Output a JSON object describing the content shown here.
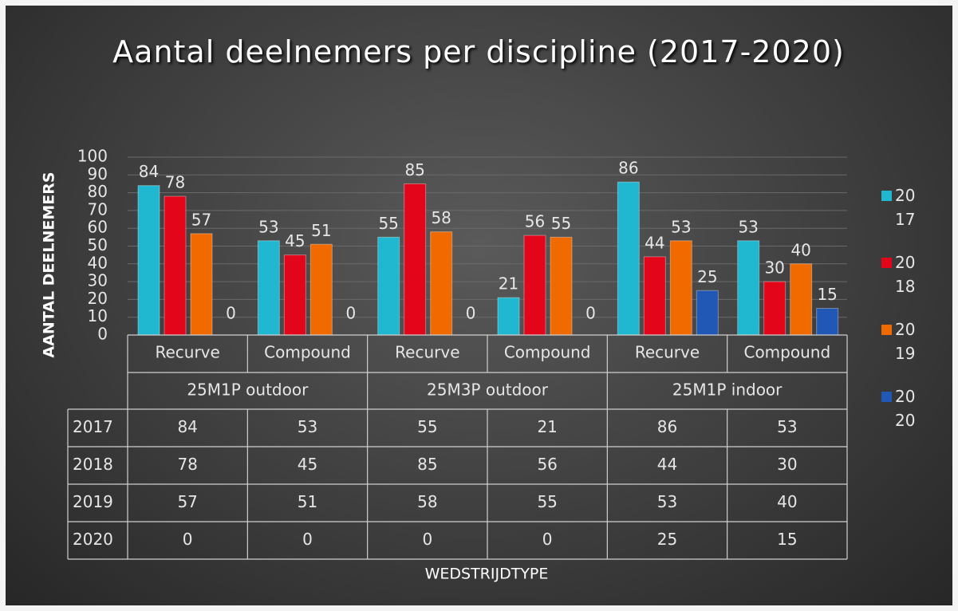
{
  "chart_data": {
    "type": "bar",
    "title": "Aantal deelnemers per discipline (2017-2020)",
    "y_label": "AANTAL DEELNEMERS",
    "x_label": "WEDSTRIJDTYPE",
    "categories": [
      "Recurve",
      "Compound",
      "Recurve",
      "Compound",
      "Recurve",
      "Compound"
    ],
    "groups": [
      "25M1P outdoor",
      "25M3P outdoor",
      "25M1P indoor"
    ],
    "series": [
      {
        "name": "2017",
        "color": "#1fb8d0",
        "values": [
          84,
          53,
          55,
          21,
          86,
          53
        ]
      },
      {
        "name": "2018",
        "color": "#e3061b",
        "values": [
          78,
          45,
          85,
          56,
          44,
          30
        ]
      },
      {
        "name": "2019",
        "color": "#f06a00",
        "values": [
          57,
          51,
          58,
          55,
          53,
          40
        ]
      },
      {
        "name": "2020",
        "color": "#2158b5",
        "values": [
          0,
          0,
          0,
          0,
          25,
          15
        ]
      }
    ],
    "ylim": [
      0,
      100
    ],
    "yticks": [
      0,
      10,
      20,
      30,
      40,
      50,
      60,
      70,
      80,
      90,
      100
    ],
    "grid": true,
    "legend": "right",
    "data_table": true
  }
}
